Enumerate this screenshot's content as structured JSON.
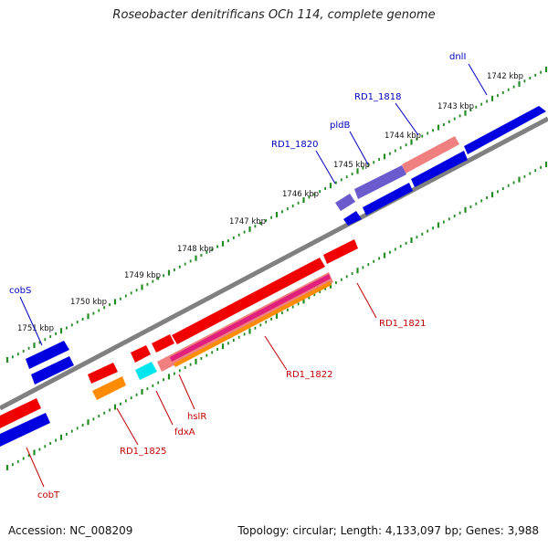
{
  "title": "Roseobacter denitrificans OCh 114, complete genome",
  "footer": {
    "accession": "Accession: NC_008209",
    "stats": "Topology: circular; Length: 4,133,097 bp; Genes: 3,988"
  },
  "colors": {
    "backbone": "#808080",
    "tick": "#228b22",
    "blue": "#0000e0",
    "red": "#f00000",
    "pink": "#f08080",
    "purple": "#6a5acd",
    "magenta": "#e0207a",
    "orange": "#ff8c00",
    "cyan": "#00e5ee",
    "label_blue": "#0000c0",
    "label_red": "#c00000"
  },
  "kbp_ticks": [
    "1742 kbp",
    "1743 kbp",
    "1744 kbp",
    "1745 kbp",
    "1746 kbp",
    "1747 kbp",
    "1748 kbp",
    "1749 kbp",
    "1750 kbp",
    "1751 kbp"
  ],
  "gene_labels_top": [
    "dnlI",
    "RD1_1818",
    "pldB",
    "RD1_1820",
    "cobS"
  ],
  "gene_labels_bottom": [
    "RD1_1821",
    "RD1_1822",
    "hslR",
    "fdxA",
    "RD1_1825",
    "cobT"
  ]
}
